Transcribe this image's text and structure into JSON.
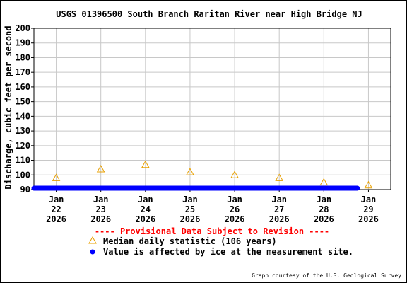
{
  "chart_data": {
    "type": "scatter",
    "title": "USGS 01396500 South Branch Raritan River near High Bridge NJ",
    "ylabel": "Discharge, cubic feet per second",
    "xlabel": "",
    "ylim": [
      90,
      200
    ],
    "y_ticks": [
      {
        "value": 90,
        "label": "90"
      },
      {
        "value": 100,
        "label": "100"
      },
      {
        "value": 110,
        "label": "110"
      },
      {
        "value": 120,
        "label": "120"
      },
      {
        "value": 130,
        "label": "130"
      },
      {
        "value": 140,
        "label": "140"
      },
      {
        "value": 150,
        "label": "150"
      },
      {
        "value": 160,
        "label": "160"
      },
      {
        "value": 170,
        "label": "170"
      },
      {
        "value": 180,
        "label": "180"
      },
      {
        "value": 190,
        "label": "190"
      },
      {
        "value": 200,
        "label": "200"
      }
    ],
    "x_ticks": [
      {
        "day": 22,
        "l1": "Jan",
        "l2": "22",
        "l3": "2026"
      },
      {
        "day": 23,
        "l1": "Jan",
        "l2": "23",
        "l3": "2026"
      },
      {
        "day": 24,
        "l1": "Jan",
        "l2": "24",
        "l3": "2026"
      },
      {
        "day": 25,
        "l1": "Jan",
        "l2": "25",
        "l3": "2026"
      },
      {
        "day": 26,
        "l1": "Jan",
        "l2": "26",
        "l3": "2026"
      },
      {
        "day": 27,
        "l1": "Jan",
        "l2": "27",
        "l3": "2026"
      },
      {
        "day": 28,
        "l1": "Jan",
        "l2": "28",
        "l3": "2026"
      },
      {
        "day": 29,
        "l1": "Jan",
        "l2": "29",
        "l3": "2026"
      }
    ],
    "xlim_days": [
      21.5,
      29.5
    ],
    "grid": true,
    "median_daily": {
      "name": "Median daily statistic (106 years)",
      "color": "#e8a000",
      "points": [
        {
          "day": 22,
          "value": 98
        },
        {
          "day": 23,
          "value": 104
        },
        {
          "day": 24,
          "value": 107
        },
        {
          "day": 25,
          "value": 102
        },
        {
          "day": 26,
          "value": 100
        },
        {
          "day": 27,
          "value": 98
        },
        {
          "day": 28,
          "value": 95
        },
        {
          "day": 29,
          "value": 93
        }
      ]
    },
    "ice_affected": {
      "name": "Value is affected by ice at the measurement site.",
      "color": "#0000ff",
      "start_day": 21.5,
      "end_day": 28.75,
      "value": 90
    },
    "provisional_note": "---- Provisional Data Subject to Revision ----",
    "credit": "Graph courtesy of the U.S. Geological Survey"
  }
}
